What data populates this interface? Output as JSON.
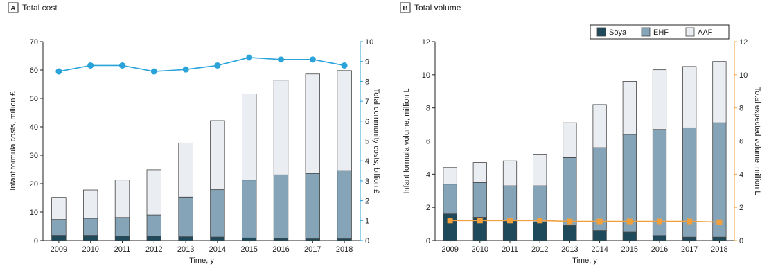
{
  "chart_data": [
    {
      "panel": "A",
      "type": "bar",
      "title": "Total cost",
      "xlabel": "Time, y",
      "ylabel": "Infant formula costs, million £",
      "ylabel2": "Total community costs, billion £",
      "categories": [
        "2009",
        "2010",
        "2011",
        "2012",
        "2013",
        "2014",
        "2015",
        "2016",
        "2017",
        "2018"
      ],
      "stacked": true,
      "ylim": [
        0,
        70
      ],
      "yticks": [
        0,
        10,
        20,
        30,
        40,
        50,
        60,
        70
      ],
      "y2lim": [
        0,
        10
      ],
      "y2ticks": [
        0,
        1,
        2,
        3,
        4,
        5,
        6,
        7,
        8,
        9,
        10
      ],
      "series": [
        {
          "name": "Soya",
          "color": "#1f4a5c",
          "values": [
            1.8,
            1.8,
            1.5,
            1.5,
            1.3,
            1.2,
            0.9,
            0.7,
            0.6,
            0.6
          ]
        },
        {
          "name": "EHF",
          "color": "#85a4b8",
          "values": [
            5.6,
            6.0,
            6.6,
            7.5,
            14.0,
            16.7,
            20.4,
            22.4,
            23.0,
            24.0
          ]
        },
        {
          "name": "AAF",
          "color": "#eaeef3",
          "values": [
            7.8,
            10.0,
            13.2,
            15.9,
            19.0,
            24.3,
            30.3,
            33.3,
            35.0,
            35.2
          ]
        }
      ],
      "line": {
        "axis": "right",
        "color": "#29a3d9",
        "values": [
          8.5,
          8.8,
          8.8,
          8.5,
          8.6,
          8.8,
          9.2,
          9.1,
          9.1,
          8.8
        ]
      }
    },
    {
      "panel": "B",
      "type": "bar",
      "title": "Total volume",
      "xlabel": "Time, y",
      "ylabel": "Infant formula volume, million L",
      "ylabel2": "Total expected volume, million L",
      "categories": [
        "2009",
        "2010",
        "2011",
        "2012",
        "2013",
        "2014",
        "2015",
        "2016",
        "2017",
        "2018"
      ],
      "stacked": true,
      "ylim": [
        0,
        12
      ],
      "yticks": [
        0,
        2,
        4,
        6,
        8,
        10,
        12
      ],
      "y2lim": [
        0,
        12
      ],
      "y2ticks": [
        0,
        2,
        4,
        6,
        8,
        10,
        12
      ],
      "legend": "top-right",
      "series": [
        {
          "name": "Soya",
          "color": "#1f4a5c",
          "values": [
            1.6,
            1.4,
            1.2,
            1.1,
            0.9,
            0.6,
            0.5,
            0.3,
            0.2,
            0.2
          ]
        },
        {
          "name": "EHF",
          "color": "#85a4b8",
          "values": [
            1.8,
            2.1,
            2.1,
            2.2,
            4.1,
            5.0,
            5.9,
            6.4,
            6.6,
            6.9
          ]
        },
        {
          "name": "AAF",
          "color": "#eaeef3",
          "values": [
            1.0,
            1.2,
            1.5,
            1.9,
            2.1,
            2.6,
            3.2,
            3.6,
            3.7,
            3.7
          ]
        }
      ],
      "line": {
        "axis": "right",
        "color": "#f2a03d",
        "values": [
          1.2,
          1.2,
          1.2,
          1.2,
          1.15,
          1.15,
          1.15,
          1.15,
          1.15,
          1.1
        ]
      }
    }
  ]
}
